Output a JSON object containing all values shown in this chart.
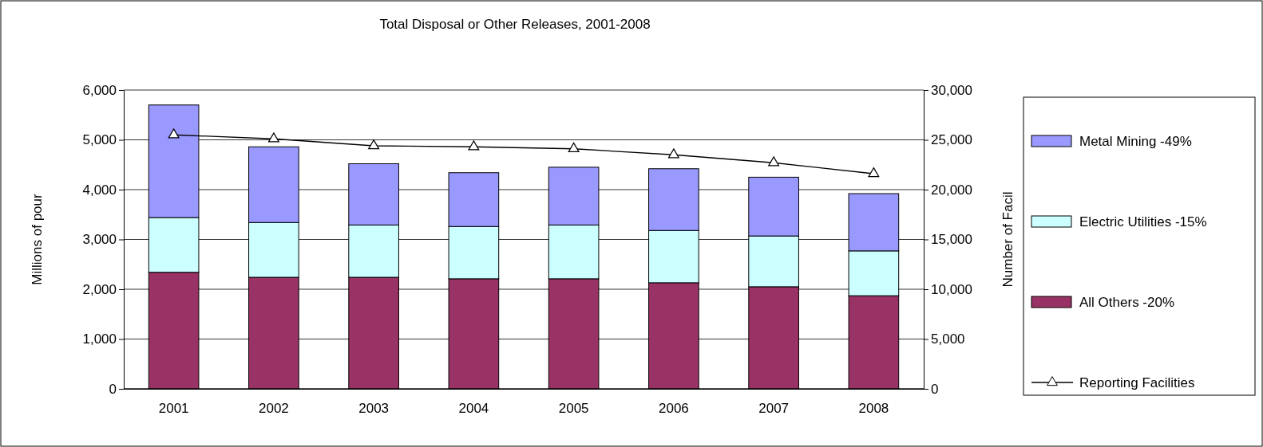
{
  "chart_data": {
    "type": "bar",
    "title": "Total Disposal or Other Releases, 2001-2008",
    "ylabel": "Millions of pour",
    "y2label": "Number of Facil",
    "categories": [
      "2001",
      "2002",
      "2003",
      "2004",
      "2005",
      "2006",
      "2007",
      "2008"
    ],
    "stacked": true,
    "series": [
      {
        "name": "All Others  -20%",
        "color": "#993366",
        "values": [
          2340,
          2240,
          2240,
          2210,
          2210,
          2130,
          2050,
          1870
        ]
      },
      {
        "name": "Electric Utilities  -15%",
        "color": "#ccffff",
        "values": [
          1100,
          1100,
          1050,
          1050,
          1080,
          1050,
          1020,
          900
        ]
      },
      {
        "name": "Metal Mining  -49%",
        "color": "#9999ff",
        "values": [
          2260,
          1520,
          1230,
          1080,
          1160,
          1240,
          1180,
          1150
        ]
      },
      {
        "name": "Reporting Facilities",
        "type": "line",
        "axis": "y2",
        "color": "#000000",
        "marker": "triangle",
        "values": [
          25500,
          25100,
          24400,
          24300,
          24100,
          23500,
          22700,
          21600
        ]
      }
    ],
    "ylim": [
      0,
      6000
    ],
    "yticks": [
      {
        "value": 0,
        "label": "0"
      },
      {
        "value": 1000,
        "label": "1,000"
      },
      {
        "value": 2000,
        "label": "2,000"
      },
      {
        "value": 3000,
        "label": "3,000"
      },
      {
        "value": 4000,
        "label": "4,000"
      },
      {
        "value": 5000,
        "label": "5,000"
      },
      {
        "value": 6000,
        "label": "6,000"
      }
    ],
    "y2lim": [
      0,
      30000
    ],
    "y2ticks": [
      {
        "value": 0,
        "label": "0"
      },
      {
        "value": 5000,
        "label": "5,000"
      },
      {
        "value": 10000,
        "label": "10,000"
      },
      {
        "value": 15000,
        "label": "15,000"
      },
      {
        "value": 20000,
        "label": "20,000"
      },
      {
        "value": 25000,
        "label": "25,000"
      },
      {
        "value": 30000,
        "label": "30,000"
      }
    ],
    "grid": "y",
    "legend": "right"
  }
}
